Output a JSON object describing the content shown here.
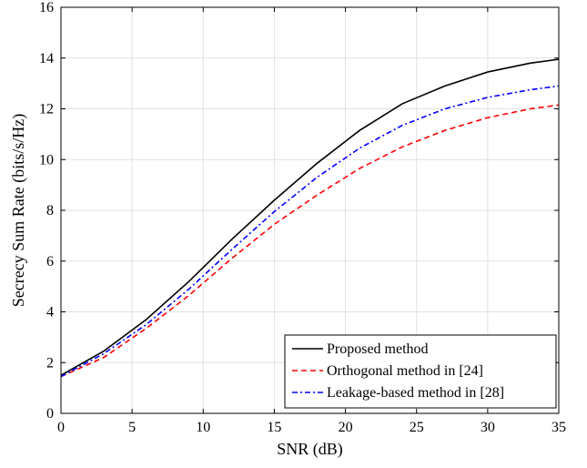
{
  "chart_data": {
    "type": "line",
    "xlabel": "SNR (dB)",
    "ylabel": "Secrecy Sum Rate (bits/s/Hz)",
    "xlim": [
      0,
      35
    ],
    "ylim": [
      0,
      16
    ],
    "xticks": [
      0,
      5,
      10,
      15,
      20,
      25,
      30,
      35
    ],
    "yticks": [
      0,
      2,
      4,
      6,
      8,
      10,
      12,
      14,
      16
    ],
    "grid": true,
    "legend_position": "bottom-right",
    "x": [
      0,
      3,
      6,
      9,
      12,
      15,
      18,
      21,
      24,
      27,
      30,
      33,
      35
    ],
    "series": [
      {
        "name": "Proposed method",
        "color": "#000000",
        "dash": "solid",
        "values": [
          1.5,
          2.45,
          3.7,
          5.2,
          6.85,
          8.4,
          9.85,
          11.15,
          12.2,
          12.9,
          13.45,
          13.8,
          13.95
        ]
      },
      {
        "name": "Orthogonal method in [24]",
        "color": "#ff0000",
        "dash": "dashed",
        "values": [
          1.45,
          2.2,
          3.35,
          4.65,
          6.1,
          7.45,
          8.6,
          9.65,
          10.5,
          11.15,
          11.65,
          12.0,
          12.15
        ]
      },
      {
        "name": "Leakage-based method in [28]",
        "color": "#0000ff",
        "dash": "dashdot",
        "values": [
          1.45,
          2.35,
          3.5,
          4.9,
          6.45,
          7.95,
          9.3,
          10.45,
          11.35,
          12.0,
          12.45,
          12.75,
          12.9
        ]
      }
    ]
  }
}
